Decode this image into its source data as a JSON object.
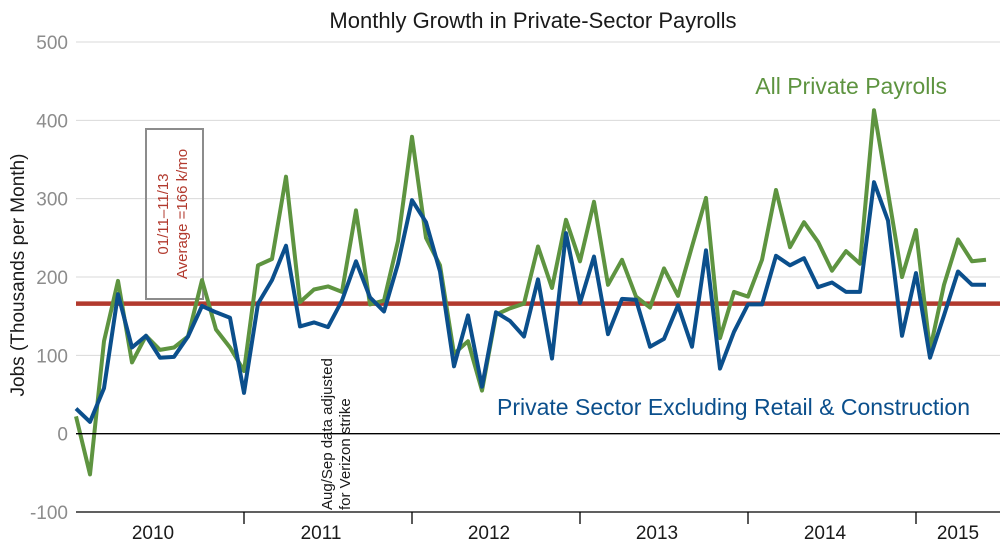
{
  "chart_data": {
    "type": "line",
    "title": "Monthly Growth in Private-Sector Payrolls",
    "ylabel": "Jobs (Thousands per Month)",
    "xlabel": "",
    "ylim": [
      -100,
      500
    ],
    "yticks": [
      -100,
      0,
      100,
      200,
      300,
      400,
      500
    ],
    "ytick_labels": [
      "-100",
      "0",
      "100",
      "200",
      "300",
      "400",
      "500"
    ],
    "xlim": [
      0,
      66
    ],
    "year_labels": [
      {
        "label": "2010",
        "center": 5.5
      },
      {
        "label": "2011",
        "center": 17.5
      },
      {
        "label": "2012",
        "center": 29.5
      },
      {
        "label": "2013",
        "center": 41.5
      },
      {
        "label": "2014",
        "center": 53.5
      },
      {
        "label": "2015",
        "center": 63
      }
    ],
    "year_boundaries": [
      12,
      24,
      36,
      48,
      60
    ],
    "grid": true,
    "reference_line": {
      "value": 166,
      "color": "#b23a2e"
    },
    "series": [
      {
        "name": "All Private Payrolls",
        "color": "#5e9440",
        "label_color": "#5e9440",
        "x": [
          0,
          1,
          2,
          3,
          4,
          5,
          6,
          7,
          8,
          9,
          10,
          11,
          12,
          13,
          14,
          15,
          16,
          17,
          18,
          19,
          20,
          21,
          22,
          23,
          24,
          25,
          26,
          27,
          28,
          29,
          30,
          31,
          32,
          33,
          34,
          35,
          36,
          37,
          38,
          39,
          40,
          41,
          42,
          43,
          44,
          45,
          46,
          47,
          48,
          49,
          50,
          51,
          52,
          53,
          54,
          55,
          56,
          57,
          58,
          59,
          60,
          61,
          62,
          63,
          64,
          65
        ],
        "values": [
          22,
          -52,
          118,
          195,
          91,
          125,
          107,
          110,
          124,
          196,
          133,
          110,
          80,
          215,
          223,
          328,
          168,
          184,
          188,
          181,
          285,
          165,
          170,
          246,
          379,
          250,
          215,
          102,
          118,
          55,
          152,
          160,
          166,
          239,
          186,
          273,
          220,
          296,
          190,
          222,
          175,
          161,
          211,
          176,
          239,
          301,
          122,
          181,
          175,
          222,
          311,
          238,
          270,
          245,
          208,
          233,
          217,
          413,
          308,
          200,
          260,
          107,
          190,
          248,
          220,
          222
        ],
        "values_label": "All Private Payrolls"
      },
      {
        "name": "Private Sector Excluding Retail & Construction",
        "color": "#0b4f8c",
        "label_color": "#0b4f8c",
        "x": [
          0,
          1,
          2,
          3,
          4,
          5,
          6,
          7,
          8,
          9,
          10,
          11,
          12,
          13,
          14,
          15,
          16,
          17,
          18,
          19,
          20,
          21,
          22,
          23,
          24,
          25,
          26,
          27,
          28,
          29,
          30,
          31,
          32,
          33,
          34,
          35,
          36,
          37,
          38,
          39,
          40,
          41,
          42,
          43,
          44,
          45,
          46,
          47,
          48,
          49,
          50,
          51,
          52,
          53,
          54,
          55,
          56,
          57,
          58,
          59,
          60,
          61,
          62,
          63,
          64,
          65
        ],
        "values": [
          32,
          15,
          58,
          178,
          110,
          125,
          97,
          98,
          124,
          163,
          155,
          148,
          52,
          166,
          196,
          240,
          137,
          142,
          136,
          170,
          220,
          174,
          156,
          217,
          298,
          270,
          207,
          86,
          151,
          60,
          155,
          144,
          124,
          197,
          96,
          256,
          167,
          226,
          127,
          172,
          171,
          111,
          121,
          164,
          111,
          234,
          83,
          130,
          165,
          165,
          227,
          215,
          224,
          187,
          193,
          181,
          181,
          321,
          272,
          125,
          205,
          97,
          151,
          207,
          190,
          190
        ],
        "values_label": "Private Sector Excluding Retail & Construction"
      }
    ],
    "annotations": {
      "average_box_line1": "01/11–11/13",
      "average_box_line2": "Average =166 k/mo",
      "verizon_line1": "Aug/Sep data adjusted",
      "verizon_line2": "for Verizon strike"
    }
  },
  "colors": {
    "grid": "#d9d9d9",
    "box_border": "#8c8c8c"
  }
}
